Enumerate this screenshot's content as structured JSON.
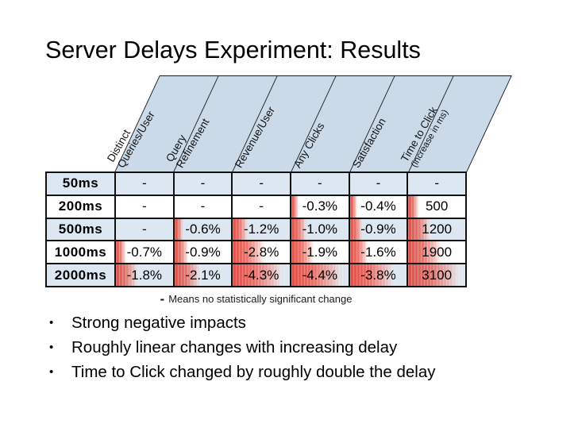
{
  "title": "Server Delays Experiment: Results",
  "bullet_glyph": "•",
  "footnote": {
    "dash": "-",
    "text": "Means no statistically significant change"
  },
  "colors": {
    "header_fill": "#cbdae9",
    "row_alt_fill": "#dde7f1",
    "row_fill": "#ffffff",
    "border": "#111111",
    "heat_red": "#df493f"
  },
  "table": {
    "columns": [
      {
        "lines": [
          "Distinct",
          "Queries/User"
        ]
      },
      {
        "lines": [
          "Query",
          "Refinement"
        ]
      },
      {
        "lines": [
          "Revenue/User"
        ]
      },
      {
        "lines": [
          "Any Clicks"
        ]
      },
      {
        "lines": [
          "Satisfaction"
        ]
      },
      {
        "lines": [
          "Time to Click",
          "(increase in ms)"
        ],
        "small_second_line": true
      }
    ],
    "rows": [
      {
        "label": "50ms",
        "cells": [
          {
            "text": "-",
            "heat": 0
          },
          {
            "text": "-",
            "heat": 0
          },
          {
            "text": "-",
            "heat": 0
          },
          {
            "text": "-",
            "heat": 0
          },
          {
            "text": "-",
            "heat": 0
          },
          {
            "text": "-",
            "heat": 0
          }
        ]
      },
      {
        "label": "200ms",
        "cells": [
          {
            "text": "-",
            "heat": 0
          },
          {
            "text": "-",
            "heat": 0
          },
          {
            "text": "-",
            "heat": 0
          },
          {
            "text": "-0.3%",
            "heat": 0.13
          },
          {
            "text": "-0.4%",
            "heat": 0.13
          },
          {
            "text": "500",
            "heat": 0.2
          }
        ]
      },
      {
        "label": "500ms",
        "cells": [
          {
            "text": "-",
            "heat": 0
          },
          {
            "text": "-0.6%",
            "heat": 0.16
          },
          {
            "text": "-1.2%",
            "heat": 0.28
          },
          {
            "text": "-1.0%",
            "heat": 0.28
          },
          {
            "text": "-0.9%",
            "heat": 0.23
          },
          {
            "text": "1200",
            "heat": 0.42
          }
        ]
      },
      {
        "label": "1000ms",
        "cells": [
          {
            "text": "-0.7%",
            "heat": 0.19
          },
          {
            "text": "-0.9%",
            "heat": 0.26
          },
          {
            "text": "-2.8%",
            "heat": 0.6
          },
          {
            "text": "-1.9%",
            "heat": 0.42
          },
          {
            "text": "-1.6%",
            "heat": 0.34
          },
          {
            "text": "1900",
            "heat": 0.63
          }
        ]
      },
      {
        "label": "2000ms",
        "cells": [
          {
            "text": "-1.8%",
            "heat": 0.4
          },
          {
            "text": "-2.1%",
            "heat": 0.48
          },
          {
            "text": "-4.3%",
            "heat": 0.93
          },
          {
            "text": "-4.4%",
            "heat": 0.95
          },
          {
            "text": "-3.8%",
            "heat": 0.83
          },
          {
            "text": "3100",
            "heat": 0.96
          }
        ]
      }
    ]
  },
  "bullets": [
    "Strong negative impacts",
    "Roughly linear changes with increasing delay",
    "Time to Click changed by roughly double the delay"
  ],
  "chart_data": {
    "type": "table",
    "title": "Server Delays Experiment: Results",
    "categories": [
      "50ms",
      "200ms",
      "500ms",
      "1000ms",
      "2000ms"
    ],
    "series": [
      {
        "name": "Distinct Queries/User",
        "values": [
          "-",
          "-",
          "-",
          "-0.7%",
          "-1.8%"
        ]
      },
      {
        "name": "Query Refinement",
        "values": [
          "-",
          "-",
          "-0.6%",
          "-0.9%",
          "-2.1%"
        ]
      },
      {
        "name": "Revenue/User",
        "values": [
          "-",
          "-",
          "-1.2%",
          "-2.8%",
          "-4.3%"
        ]
      },
      {
        "name": "Any Clicks",
        "values": [
          "-",
          "-0.3%",
          "-1.0%",
          "-1.9%",
          "-4.4%"
        ]
      },
      {
        "name": "Satisfaction",
        "values": [
          "-",
          "-0.4%",
          "-0.9%",
          "-1.6%",
          "-3.8%"
        ]
      },
      {
        "name": "Time to Click (increase in ms)",
        "values": [
          "-",
          "500",
          "1200",
          "1900",
          "3100"
        ]
      }
    ],
    "note": "- means no statistically significant change",
    "shading": "red gradient bar from cell left, length proportional to magnitude of change"
  }
}
